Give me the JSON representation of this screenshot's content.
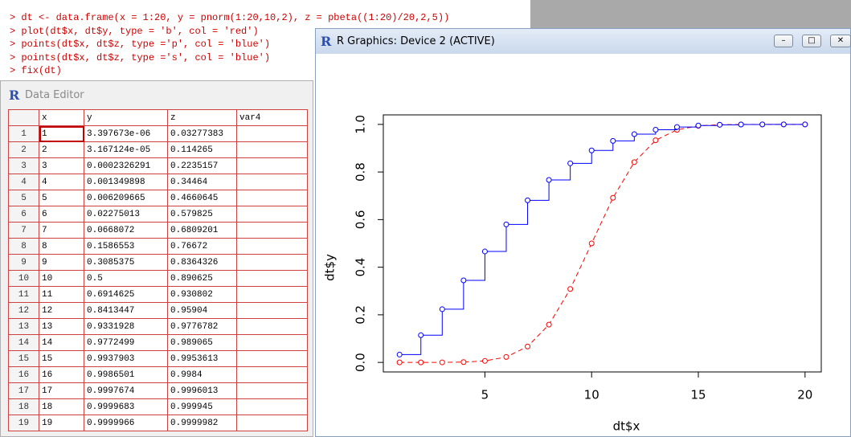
{
  "console": {
    "lines": [
      "> dt <- data.frame(x = 1:20, y = pnorm(1:20,10,2), z = pbeta((1:20)/20,2,5))",
      "> plot(dt$x, dt$y, type = 'b', col = 'red')",
      "> points(dt$x, dt$z, type ='p', col = 'blue')",
      "> points(dt$x, dt$z, type ='s', col = 'blue')",
      "> fix(dt)"
    ]
  },
  "editor": {
    "title": "Data Editor",
    "columns": [
      "x",
      "y",
      "z",
      "var4"
    ],
    "rows": [
      [
        "1",
        "1",
        "3.397673e-06",
        "0.03277383"
      ],
      [
        "2",
        "2",
        "3.167124e-05",
        "0.114265"
      ],
      [
        "3",
        "3",
        "0.0002326291",
        "0.2235157"
      ],
      [
        "4",
        "4",
        "0.001349898",
        "0.34464"
      ],
      [
        "5",
        "5",
        "0.006209665",
        "0.4660645"
      ],
      [
        "6",
        "6",
        "0.02275013",
        "0.579825"
      ],
      [
        "7",
        "7",
        "0.0668072",
        "0.6809201"
      ],
      [
        "8",
        "8",
        "0.1586553",
        "0.76672"
      ],
      [
        "9",
        "9",
        "0.3085375",
        "0.8364326"
      ],
      [
        "10",
        "10",
        "0.5",
        "0.890625"
      ],
      [
        "11",
        "11",
        "0.6914625",
        "0.930802"
      ],
      [
        "12",
        "12",
        "0.8413447",
        "0.95904"
      ],
      [
        "13",
        "13",
        "0.9331928",
        "0.9776782"
      ],
      [
        "14",
        "14",
        "0.9772499",
        "0.989065"
      ],
      [
        "15",
        "15",
        "0.9937903",
        "0.9953613"
      ],
      [
        "16",
        "16",
        "0.9986501",
        "0.9984"
      ],
      [
        "17",
        "17",
        "0.9997674",
        "0.9996013"
      ],
      [
        "18",
        "18",
        "0.9999683",
        "0.999945"
      ],
      [
        "19",
        "19",
        "0.9999966",
        "0.9999982"
      ]
    ]
  },
  "graphics": {
    "title": "R Graphics: Device 2 (ACTIVE)"
  },
  "chart_data": {
    "type": "line",
    "xlabel": "dt$x",
    "ylabel": "dt$y",
    "x": [
      1,
      2,
      3,
      4,
      5,
      6,
      7,
      8,
      9,
      10,
      11,
      12,
      13,
      14,
      15,
      16,
      17,
      18,
      19,
      20
    ],
    "series": [
      {
        "color": "#ff0000",
        "style": "b",
        "values": [
          3.397673e-06,
          3.167124e-05,
          0.0002326291,
          0.001349898,
          0.006209665,
          0.02275013,
          0.0668072,
          0.1586553,
          0.3085375,
          0.5,
          0.6914625,
          0.8413447,
          0.9331928,
          0.9772499,
          0.9937903,
          0.9986501,
          0.9997674,
          0.9999683,
          0.9999966,
          0.9999997
        ]
      },
      {
        "color": "#0000ff",
        "style": "s",
        "values": [
          0.03277383,
          0.114265,
          0.2235157,
          0.34464,
          0.4660645,
          0.579825,
          0.6809201,
          0.76672,
          0.8364326,
          0.890625,
          0.930802,
          0.95904,
          0.9776782,
          0.989065,
          0.9953613,
          0.9984,
          0.9996013,
          0.999945,
          0.9999982,
          1
        ]
      }
    ],
    "xlim": [
      0.24,
      20.76
    ],
    "ylim": [
      -0.04,
      1.04
    ],
    "xticks": [
      5,
      10,
      15,
      20
    ],
    "yticks": [
      {
        "value": 0,
        "label": "0.0"
      },
      0.2,
      0.4,
      0.6,
      0.8,
      {
        "value": 1,
        "label": "1.0"
      }
    ]
  }
}
